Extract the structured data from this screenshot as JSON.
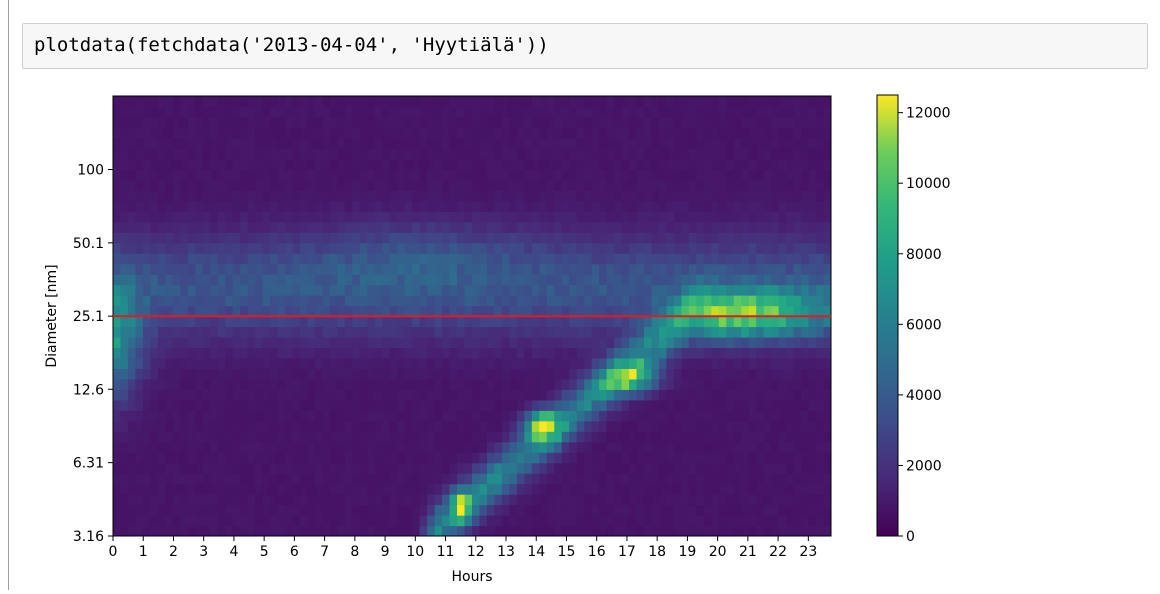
{
  "code_cell": {
    "source": "plotdata(fetchdata('2013-04-04', 'Hyytiälä'))"
  },
  "chart_data": {
    "type": "heatmap",
    "title": "",
    "xlabel": "Hours",
    "ylabel": "Diameter [nm]",
    "x_ticks": [
      "0",
      "1",
      "2",
      "3",
      "4",
      "5",
      "6",
      "7",
      "8",
      "9",
      "10",
      "11",
      "12",
      "13",
      "14",
      "15",
      "16",
      "17",
      "18",
      "19",
      "20",
      "21",
      "22",
      "23"
    ],
    "xlim": [
      0,
      23.75
    ],
    "y_ticks": [
      "3.16",
      "6.31",
      "12.6",
      "25.1",
      "50.1",
      "100"
    ],
    "y_scale": "log",
    "ylim": [
      3.16,
      200
    ],
    "colormap": "viridis",
    "colorbar": {
      "ticks": [
        "0",
        "2000",
        "4000",
        "6000",
        "8000",
        "10000",
        "12000"
      ],
      "range": [
        0,
        12500
      ]
    },
    "reference_line": {
      "y": 25.1,
      "color": "#e8191c"
    },
    "features": [
      {
        "x": 0.2,
        "y": 18,
        "value": 6400
      },
      {
        "x": 11.5,
        "y": 4.3,
        "value": 12000
      },
      {
        "x": 14.2,
        "y": 9.0,
        "value": 12000
      },
      {
        "x": 17.0,
        "y": 14.5,
        "value": 10500
      }
    ]
  }
}
